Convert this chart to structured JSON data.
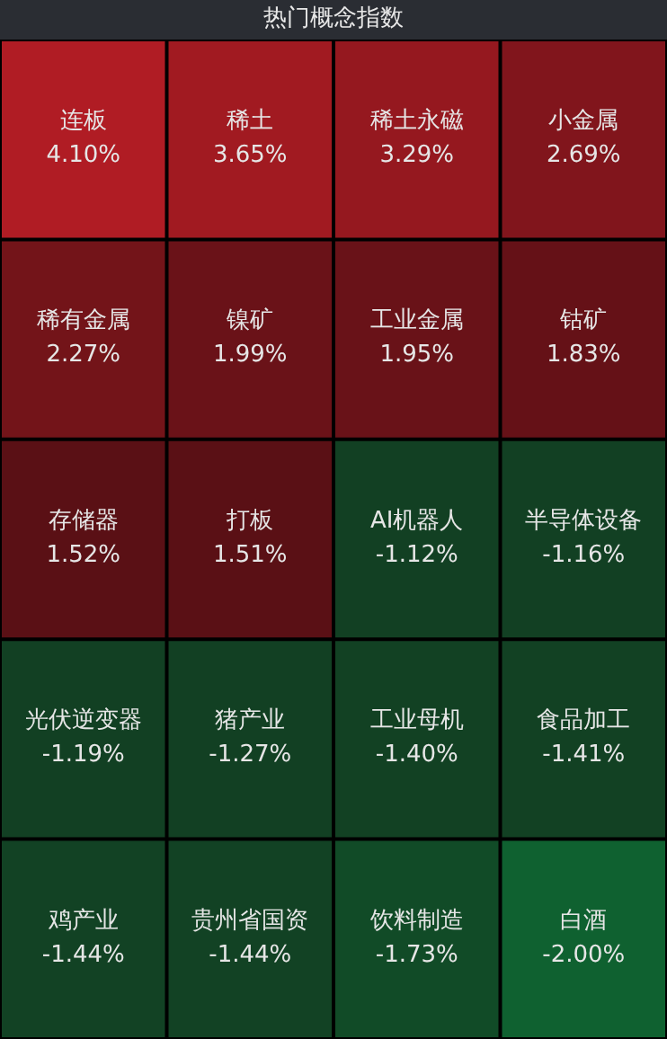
{
  "chart_data": {
    "type": "other",
    "title": "热门概念指数",
    "categories": [
      "连板",
      "稀土",
      "稀土永磁",
      "小金属",
      "稀有金属",
      "镍矿",
      "工业金属",
      "钴矿",
      "存储器",
      "打板",
      "AI机器人",
      "半导体设备",
      "光伏逆变器",
      "猪产业",
      "工业母机",
      "食品加工",
      "鸡产业",
      "贵州省国资",
      "饮料制造",
      "白酒"
    ],
    "values": [
      4.1,
      3.65,
      3.29,
      2.69,
      2.27,
      1.99,
      1.95,
      1.83,
      1.52,
      1.51,
      -1.12,
      -1.16,
      -1.19,
      -1.27,
      -1.4,
      -1.41,
      -1.44,
      -1.44,
      -1.73,
      -2.0
    ],
    "value_labels": [
      "4.10%",
      "3.65%",
      "3.29%",
      "2.69%",
      "2.27%",
      "1.99%",
      "1.95%",
      "1.83%",
      "1.52%",
      "1.51%",
      "-1.12%",
      "-1.16%",
      "-1.19%",
      "-1.27%",
      "-1.40%",
      "-1.41%",
      "-1.44%",
      "-1.44%",
      "-1.73%",
      "-2.00%"
    ]
  }
}
